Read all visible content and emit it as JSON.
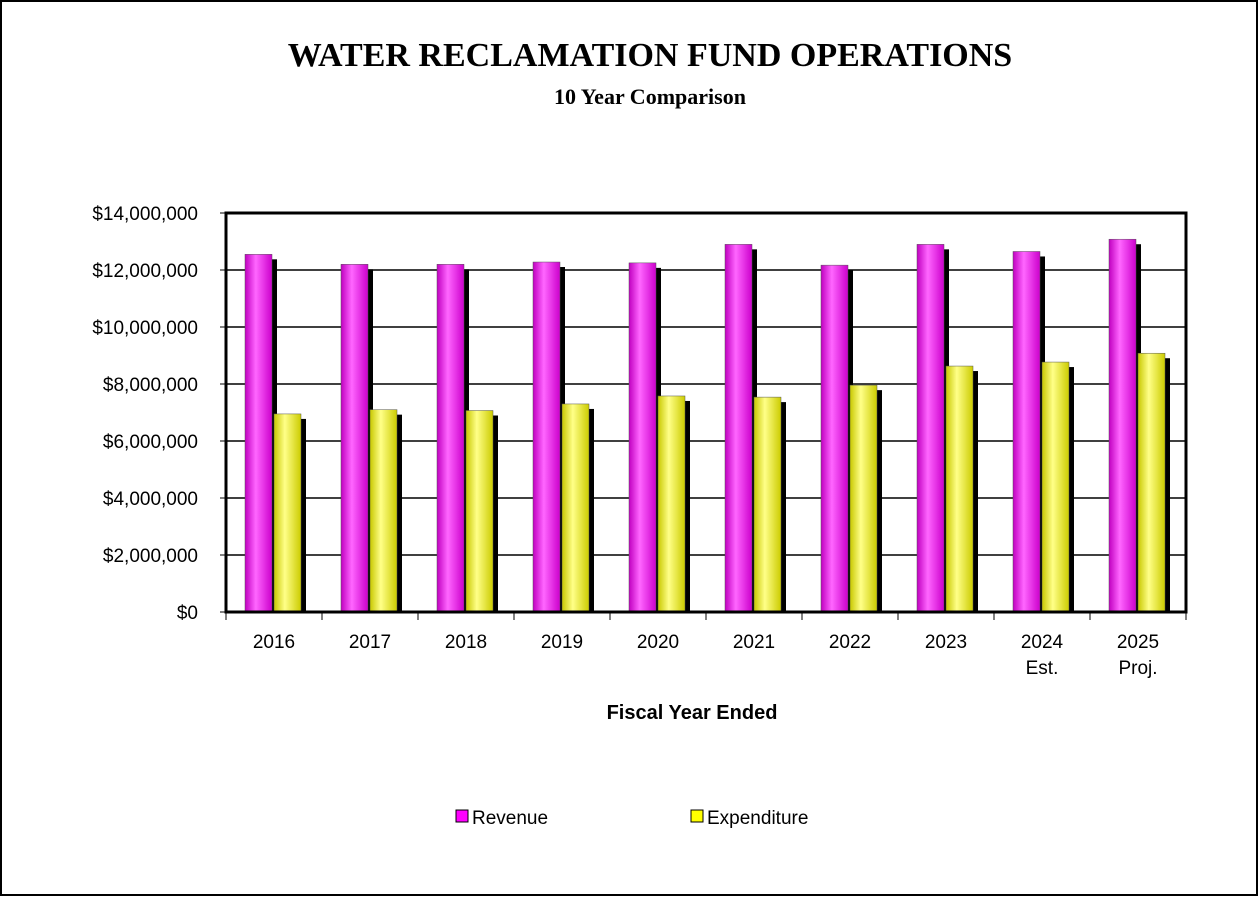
{
  "chart_data": {
    "type": "bar",
    "title": "WATER RECLAMATION FUND OPERATIONS",
    "subtitle": "10 Year Comparison",
    "x_label": "Fiscal Year Ended",
    "categories": [
      "2016",
      "2017",
      "2018",
      "2019",
      "2020",
      "2021",
      "2022",
      "2023",
      "2024 Est.",
      "2025 Proj."
    ],
    "series": [
      {
        "name": "Revenue",
        "color": "#ff00ff",
        "values": [
          12550000,
          12200000,
          12200000,
          12280000,
          12250000,
          12900000,
          12170000,
          12900000,
          12650000,
          13080000
        ]
      },
      {
        "name": "Expenditure",
        "color": "#ffff00",
        "values": [
          6950000,
          7100000,
          7070000,
          7300000,
          7580000,
          7540000,
          7960000,
          8630000,
          8770000,
          9080000
        ]
      }
    ],
    "ylim": [
      0,
      14000000
    ],
    "yticks": [
      {
        "value": 0,
        "label": "$0"
      },
      {
        "value": 2000000,
        "label": "$2,000,000"
      },
      {
        "value": 4000000,
        "label": "$4,000,000"
      },
      {
        "value": 6000000,
        "label": "$6,000,000"
      },
      {
        "value": 8000000,
        "label": "$8,000,000"
      },
      {
        "value": 10000000,
        "label": "$10,000,000"
      },
      {
        "value": 12000000,
        "label": "$12,000,000"
      },
      {
        "value": 14000000,
        "label": "$14,000,000"
      }
    ],
    "grid": true,
    "legend": "bottom"
  }
}
